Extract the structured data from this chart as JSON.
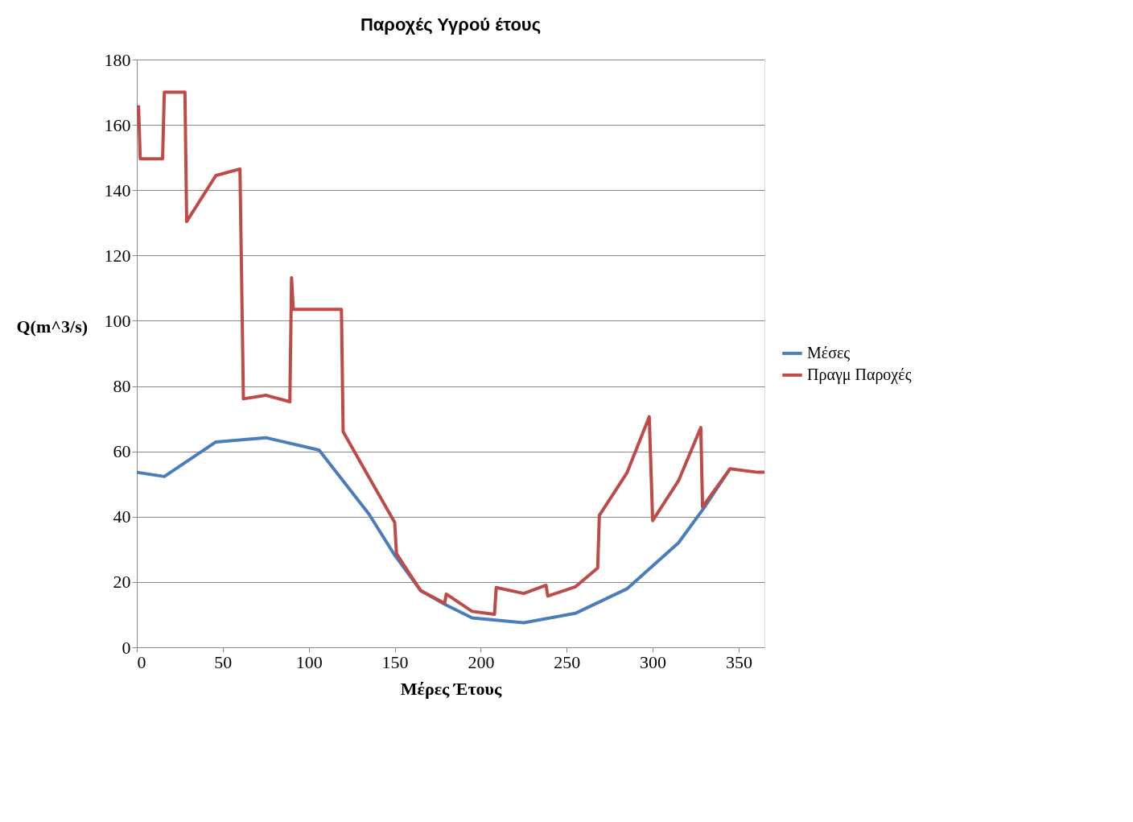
{
  "chart_data": {
    "type": "line",
    "title": "Παροχές Υγρού έτους",
    "xlabel": "Μέρες Έτους",
    "ylabel": "Q(m^3/s)",
    "xlim": [
      0,
      365
    ],
    "xticks": [
      0,
      50,
      100,
      150,
      200,
      250,
      300,
      350
    ],
    "ylim": [
      0,
      180
    ],
    "yticks": [
      0,
      20,
      40,
      60,
      80,
      100,
      120,
      140,
      160,
      180
    ],
    "grid": "y",
    "legend": "right",
    "line_style": "solid",
    "series": [
      {
        "name": "Μέσες",
        "color": "#4a7ebb",
        "x": [
          0,
          16,
          46,
          75,
          106,
          135,
          150,
          165,
          179,
          195,
          225,
          255,
          285,
          315,
          330,
          345
        ],
        "values": [
          53.6,
          52.3,
          62.9,
          64.2,
          60.4,
          40.8,
          28.2,
          17.4,
          13.2,
          9.0,
          7.5,
          10.4,
          17.9,
          32,
          42.8,
          54.7
        ]
      },
      {
        "name": "Πραγμ Παροχές",
        "color": "#be4b48",
        "x": [
          1,
          2,
          15,
          16,
          28,
          29,
          46,
          60,
          62,
          75,
          89,
          90,
          91,
          119,
          120,
          135,
          150,
          151,
          165,
          179,
          180,
          195,
          208,
          209,
          225,
          238,
          239,
          255,
          268,
          269,
          285,
          298,
          300,
          315,
          328,
          329,
          345,
          361,
          365
        ],
        "values": [
          166,
          149.6,
          149.6,
          170,
          170,
          130.4,
          144.5,
          146.5,
          76.1,
          77.2,
          75.2,
          113.2,
          103.5,
          103.5,
          66,
          52.1,
          38.2,
          28.7,
          17.4,
          13.5,
          16.3,
          11,
          10.1,
          18.3,
          16.5,
          19,
          15.7,
          18.5,
          24.3,
          40.4,
          53.4,
          70.6,
          38.8,
          51,
          67.3,
          43,
          54.7,
          53.6,
          53.6
        ]
      }
    ]
  }
}
